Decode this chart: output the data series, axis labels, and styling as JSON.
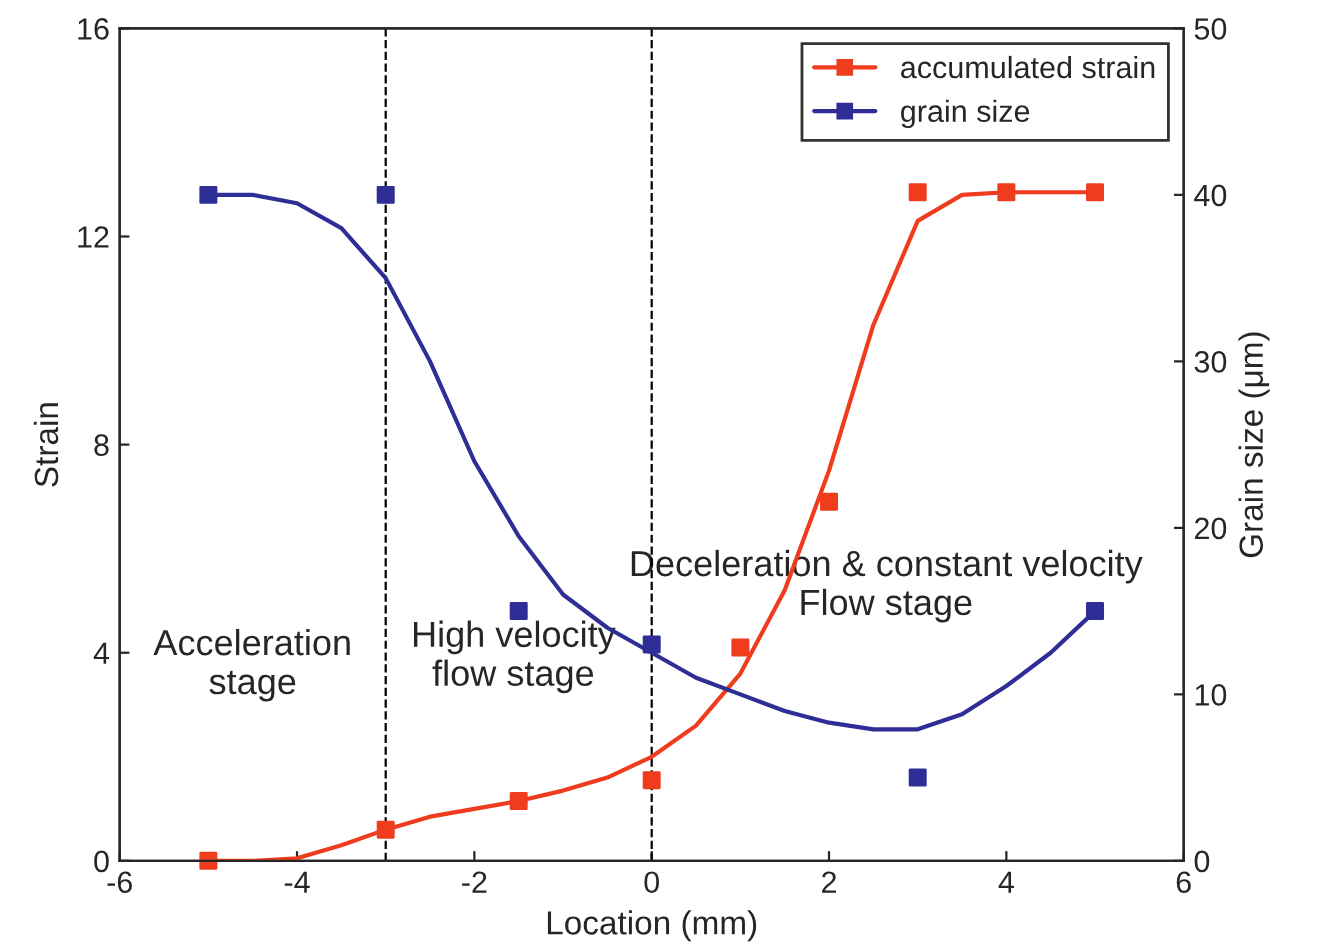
{
  "chart_data": {
    "type": "scatter",
    "xlabel": "Location (mm)",
    "ylabel": "Strain",
    "y2label": "Grain size (μm)",
    "xlim": [
      -6,
      6
    ],
    "xticks": [
      -6,
      -4,
      -2,
      0,
      2,
      4,
      6
    ],
    "ylim": [
      0,
      16
    ],
    "yticks": [
      0,
      4,
      8,
      12,
      16
    ],
    "y2lim": [
      0,
      50
    ],
    "y2ticks": [
      0,
      10,
      20,
      30,
      40,
      50
    ],
    "grid": false,
    "legend": "top right",
    "marker": "square",
    "series": [
      {
        "name": "accumulated strain",
        "color": "#f03c1e",
        "x": [
          -5,
          -3,
          -1.5,
          0,
          1,
          2,
          3,
          4,
          5
        ],
        "values": [
          0.0,
          0.6,
          1.15,
          1.55,
          4.1,
          6.9,
          12.85,
          12.85,
          12.85
        ]
      },
      {
        "name": "grain size",
        "axis": "y2",
        "color": "#2e2e96",
        "x": [
          -5,
          -3,
          -1.5,
          0,
          3,
          5
        ],
        "values": [
          40,
          40,
          15,
          13,
          5,
          15
        ]
      },
      {
        "type": "line",
        "color": "#f03c1e",
        "line_style": "solid",
        "marker": "none",
        "x": [
          -5,
          -4.5,
          -4,
          -3.5,
          -3,
          -2.5,
          -2,
          -1.5,
          -1,
          -0.5,
          0,
          0.5,
          1,
          1.5,
          2,
          2.5,
          3,
          3.5,
          4,
          4.5,
          5
        ],
        "values": [
          0,
          0,
          0.05,
          0.3,
          0.6,
          0.85,
          1.0,
          1.15,
          1.35,
          1.6,
          2.0,
          2.6,
          3.6,
          5.2,
          7.5,
          10.3,
          12.3,
          12.8,
          12.85,
          12.85,
          12.85
        ]
      },
      {
        "type": "line",
        "axis": "y2",
        "color": "#2e2e96",
        "line_style": "solid",
        "marker": "none",
        "x": [
          -5,
          -4.5,
          -4,
          -3.5,
          -3,
          -2.5,
          -2,
          -1.5,
          -1,
          -0.5,
          0,
          0.5,
          1,
          1.5,
          2,
          2.5,
          3,
          3.5,
          4,
          4.5,
          5
        ],
        "values": [
          40,
          40,
          39.5,
          38,
          35,
          30,
          24,
          19.5,
          16,
          14,
          12.5,
          11,
          10,
          9,
          8.3,
          7.9,
          7.9,
          8.8,
          10.5,
          12.5,
          15
        ]
      }
    ],
    "ref_lines": [
      {
        "axis": "x",
        "value": -3,
        "color": "#000000",
        "line_style": "dashed"
      },
      {
        "axis": "x",
        "value": 0,
        "color": "#000000",
        "line_style": "dashed"
      }
    ],
    "annotations": [
      "Acceleration\nstage",
      "High velocity\nflow stage",
      "Deceleration & constant velocity\nFlow stage"
    ]
  }
}
